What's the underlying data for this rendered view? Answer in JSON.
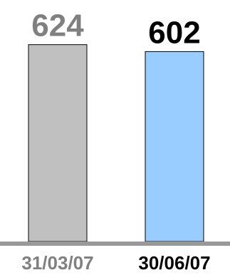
{
  "chart_data": {
    "type": "bar",
    "categories": [
      "31/03/07",
      "30/06/07"
    ],
    "values": [
      624,
      602
    ],
    "title": "",
    "xlabel": "",
    "ylabel": "",
    "ylim": [
      0,
      630
    ],
    "grid": false,
    "legend": "none",
    "colors": {
      "bars": [
        "#c0c0c0",
        "#99ccff"
      ],
      "bar_stroke": "#000000",
      "value_labels": [
        "#808080",
        "#000000"
      ],
      "category_labels": [
        "#808080",
        "#000000"
      ],
      "baseline": "#999999"
    }
  }
}
